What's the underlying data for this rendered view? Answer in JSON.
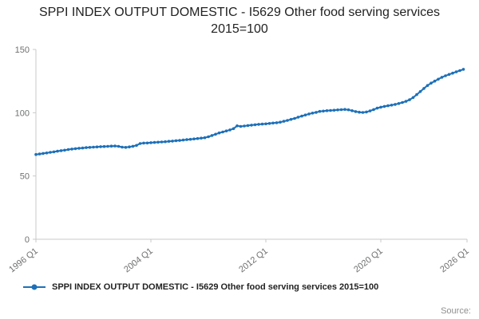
{
  "title": "SPPI INDEX OUTPUT DOMESTIC - I5629 Other food serving services 2015=100",
  "legend_label": "SPPI INDEX OUTPUT DOMESTIC - I5629 Other food serving services 2015=100",
  "source_label": "Source:",
  "colors": {
    "accent": "#1d70b8",
    "axis": "#c8c8c8",
    "tick_label": "#6f7071",
    "title_text": "#222222",
    "source_text": "#8f8f8f"
  },
  "chart_data": {
    "type": "line",
    "title": "SPPI INDEX OUTPUT DOMESTIC - I5629 Other food serving services 2015=100",
    "xlabel": "",
    "ylabel": "",
    "ylim": [
      0,
      150
    ],
    "yticks": [
      0,
      50,
      100,
      150
    ],
    "xlim": [
      0,
      120
    ],
    "x_start": "1996 Q1",
    "frequency": "quarterly",
    "grid": false,
    "legend_position": "bottom",
    "xticks": [
      {
        "q": 0,
        "label": "1996 Q1"
      },
      {
        "q": 32,
        "label": "2004 Q1"
      },
      {
        "q": 64,
        "label": "2012 Q1"
      },
      {
        "q": 96,
        "label": "2020 Q1"
      },
      {
        "q": 120,
        "label": "2026 Q1"
      }
    ],
    "series": [
      {
        "name": "SPPI INDEX OUTPUT DOMESTIC - I5629 Other food serving services 2015=100",
        "values": [
          67.0,
          67.4,
          67.8,
          68.2,
          68.7,
          69.1,
          69.6,
          70.0,
          70.4,
          70.9,
          71.3,
          71.6,
          71.9,
          72.1,
          72.4,
          72.6,
          72.8,
          73.0,
          73.2,
          73.3,
          73.4,
          73.6,
          73.7,
          73.4,
          72.8,
          72.6,
          73.0,
          73.5,
          74.2,
          75.6,
          76.0,
          76.1,
          76.3,
          76.5,
          76.7,
          76.9,
          77.1,
          77.4,
          77.6,
          77.9,
          78.1,
          78.4,
          78.7,
          79.0,
          79.3,
          79.6,
          79.9,
          80.2,
          81.0,
          82.0,
          83.0,
          84.0,
          84.8,
          85.6,
          86.4,
          87.4,
          89.6,
          89.2,
          89.5,
          89.9,
          90.2,
          90.5,
          90.8,
          91.0,
          91.2,
          91.5,
          91.8,
          92.1,
          92.5,
          93.2,
          93.9,
          94.7,
          95.5,
          96.5,
          97.3,
          98.2,
          99.0,
          99.7,
          100.3,
          101.0,
          101.3,
          101.6,
          101.8,
          102.0,
          102.2,
          102.4,
          102.6,
          102.3,
          101.6,
          100.9,
          100.4,
          100.2,
          100.6,
          101.4,
          102.5,
          103.6,
          104.4,
          105.0,
          105.5,
          106.0,
          106.6,
          107.3,
          108.1,
          109.0,
          110.2,
          112.0,
          114.3,
          116.7,
          119.2,
          121.5,
          123.4,
          125.0,
          126.5,
          128.0,
          129.2,
          130.3,
          131.3,
          132.3,
          133.3,
          134.3
        ]
      }
    ]
  }
}
